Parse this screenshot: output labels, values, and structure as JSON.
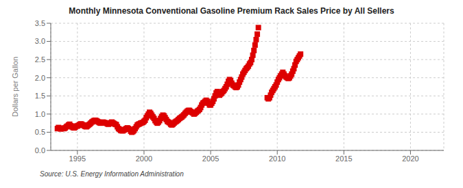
{
  "chart_data": {
    "type": "scatter",
    "title": "Monthly Minnesota Conventional Gasoline Premium Rack Sales Price by All Sellers",
    "ylabel": "Dollars per Gallon",
    "annotation": "Source: U.S. Energy Information Administration",
    "xlim": [
      1993.0,
      2022.5
    ],
    "ylim": [
      0.0,
      3.5
    ],
    "xticks": [
      1995,
      2000,
      2005,
      2010,
      2015,
      2020
    ],
    "yticks": [
      {
        "value": 0.0,
        "label": "0.0"
      },
      0.5,
      {
        "value": 1.0,
        "label": "1.0"
      },
      1.5,
      {
        "value": 2.0,
        "label": "2.0"
      },
      2.5,
      {
        "value": 3.0,
        "label": "3.0"
      },
      3.5
    ],
    "color": "#dd0000",
    "marker": "square",
    "grid": true,
    "x": [
      1993.5,
      1993.583,
      1993.667,
      1993.75,
      1993.833,
      1993.917,
      1994.0,
      1994.083,
      1994.167,
      1994.25,
      1994.333,
      1994.417,
      1994.5,
      1994.583,
      1994.667,
      1994.75,
      1994.833,
      1994.917,
      1995.0,
      1995.083,
      1995.167,
      1995.25,
      1995.333,
      1995.417,
      1995.5,
      1995.583,
      1995.667,
      1995.75,
      1995.833,
      1995.917,
      1996.0,
      1996.083,
      1996.167,
      1996.25,
      1996.333,
      1996.417,
      1996.5,
      1996.583,
      1996.667,
      1996.75,
      1996.833,
      1996.917,
      1997.0,
      1997.083,
      1997.167,
      1997.25,
      1997.333,
      1997.417,
      1997.5,
      1997.583,
      1997.667,
      1997.75,
      1997.833,
      1997.917,
      1998.0,
      1998.083,
      1998.167,
      1998.25,
      1998.333,
      1998.417,
      1998.5,
      1998.583,
      1998.667,
      1998.75,
      1998.833,
      1998.917,
      1999.0,
      1999.083,
      1999.167,
      1999.25,
      1999.333,
      1999.417,
      1999.5,
      1999.583,
      1999.667,
      1999.75,
      1999.833,
      1999.917,
      2000.0,
      2000.083,
      2000.167,
      2000.25,
      2000.333,
      2000.417,
      2000.5,
      2000.583,
      2000.667,
      2000.75,
      2000.833,
      2000.917,
      2001.0,
      2001.083,
      2001.167,
      2001.25,
      2001.333,
      2001.417,
      2001.5,
      2001.583,
      2001.667,
      2001.75,
      2001.833,
      2001.917,
      2002.0,
      2002.083,
      2002.167,
      2002.25,
      2002.333,
      2002.417,
      2002.5,
      2002.583,
      2002.667,
      2002.75,
      2002.833,
      2002.917,
      2003.0,
      2003.083,
      2003.167,
      2003.25,
      2003.333,
      2003.417,
      2003.5,
      2003.583,
      2003.667,
      2003.75,
      2003.833,
      2003.917,
      2004.0,
      2004.083,
      2004.167,
      2004.25,
      2004.333,
      2004.417,
      2004.5,
      2004.583,
      2004.667,
      2004.75,
      2004.833,
      2004.917,
      2005.0,
      2005.083,
      2005.167,
      2005.25,
      2005.333,
      2005.417,
      2005.5,
      2005.583,
      2005.667,
      2005.75,
      2005.833,
      2005.917,
      2006.0,
      2006.083,
      2006.167,
      2006.25,
      2006.333,
      2006.417,
      2006.5,
      2006.583,
      2006.667,
      2006.75,
      2006.833,
      2006.917,
      2007.0,
      2007.083,
      2007.167,
      2007.25,
      2007.333,
      2007.417,
      2007.5,
      2007.583,
      2007.667,
      2007.75,
      2007.833,
      2007.917,
      2008.0,
      2008.083,
      2008.167,
      2008.25,
      2008.333,
      2008.417,
      2008.5,
      2008.583,
      2009.25,
      2009.333,
      2009.417,
      2009.5,
      2009.583,
      2009.667,
      2009.75,
      2009.833,
      2009.917,
      2010.0,
      2010.083,
      2010.167,
      2010.25,
      2010.333,
      2010.417,
      2010.5,
      2010.583,
      2010.667,
      2010.75,
      2010.833,
      2010.917,
      2011.0,
      2011.083,
      2011.167,
      2011.25,
      2011.333,
      2011.417,
      2011.5,
      2011.583,
      2011.667,
      2011.75
    ],
    "values": [
      0.6,
      0.63,
      0.61,
      0.59,
      0.6,
      0.61,
      0.6,
      0.62,
      0.65,
      0.67,
      0.7,
      0.72,
      0.68,
      0.65,
      0.63,
      0.62,
      0.64,
      0.67,
      0.67,
      0.69,
      0.71,
      0.73,
      0.72,
      0.7,
      0.68,
      0.66,
      0.65,
      0.67,
      0.7,
      0.72,
      0.75,
      0.78,
      0.8,
      0.82,
      0.83,
      0.82,
      0.8,
      0.78,
      0.76,
      0.75,
      0.77,
      0.78,
      0.77,
      0.76,
      0.75,
      0.73,
      0.72,
      0.74,
      0.76,
      0.78,
      0.76,
      0.74,
      0.72,
      0.71,
      0.65,
      0.6,
      0.58,
      0.55,
      0.54,
      0.54,
      0.56,
      0.58,
      0.6,
      0.62,
      0.6,
      0.58,
      0.53,
      0.5,
      0.52,
      0.55,
      0.6,
      0.65,
      0.7,
      0.72,
      0.73,
      0.75,
      0.76,
      0.77,
      0.8,
      0.83,
      0.9,
      0.95,
      1.0,
      1.05,
      1.02,
      0.97,
      0.92,
      0.88,
      0.82,
      0.78,
      0.75,
      0.78,
      0.82,
      0.88,
      0.93,
      0.97,
      0.95,
      0.9,
      0.85,
      0.8,
      0.78,
      0.76,
      0.72,
      0.7,
      0.72,
      0.75,
      0.78,
      0.8,
      0.82,
      0.85,
      0.88,
      0.9,
      0.92,
      0.95,
      0.98,
      1.02,
      1.05,
      1.08,
      1.1,
      1.1,
      1.07,
      1.05,
      1.03,
      1.0,
      1.02,
      1.05,
      1.08,
      1.1,
      1.13,
      1.18,
      1.25,
      1.3,
      1.32,
      1.35,
      1.38,
      1.35,
      1.3,
      1.25,
      1.25,
      1.3,
      1.35,
      1.42,
      1.5,
      1.58,
      1.62,
      1.58,
      1.52,
      1.55,
      1.58,
      1.62,
      1.65,
      1.7,
      1.75,
      1.82,
      1.9,
      1.95,
      1.92,
      1.85,
      1.8,
      1.78,
      1.75,
      1.73,
      1.75,
      1.8,
      1.88,
      1.95,
      2.02,
      2.1,
      2.15,
      2.2,
      2.25,
      2.28,
      2.32,
      2.38,
      2.42,
      2.5,
      2.62,
      2.75,
      2.9,
      3.05,
      3.2,
      3.38,
      1.45,
      1.42,
      1.45,
      1.52,
      1.6,
      1.65,
      1.7,
      1.75,
      1.8,
      1.88,
      1.95,
      2.0,
      2.05,
      2.1,
      2.15,
      2.1,
      2.05,
      2.02,
      2.0,
      1.98,
      2.0,
      2.05,
      2.1,
      2.18,
      2.25,
      2.35,
      2.45,
      2.5,
      2.55,
      2.6,
      2.65
    ]
  }
}
